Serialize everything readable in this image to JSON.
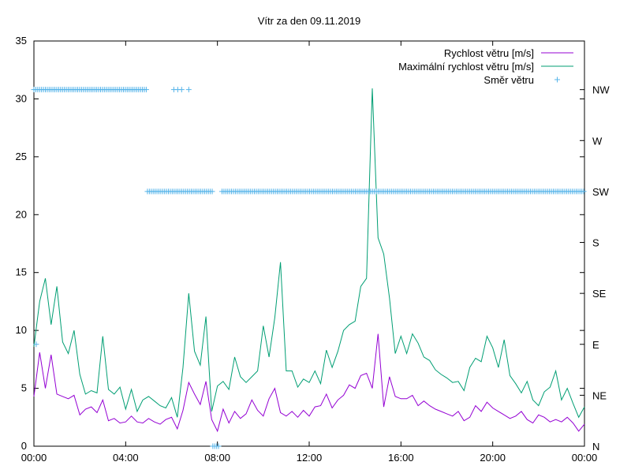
{
  "chart_data": {
    "type": "line",
    "title": "Vítr za den 09.11.2019",
    "xlabel": "",
    "ylabel": "",
    "x_range_hours": [
      0,
      24
    ],
    "x_ticks": [
      {
        "h": 0,
        "label": "00:00"
      },
      {
        "h": 4,
        "label": "04:00"
      },
      {
        "h": 8,
        "label": "08:00"
      },
      {
        "h": 12,
        "label": "12:00"
      },
      {
        "h": 16,
        "label": "16:00"
      },
      {
        "h": 20,
        "label": "20:00"
      },
      {
        "h": 24,
        "label": "00:00"
      }
    ],
    "ylim": [
      0,
      35
    ],
    "y_ticks": [
      0,
      5,
      10,
      15,
      20,
      25,
      30,
      35
    ],
    "y2_labels": [
      "N",
      "NE",
      "E",
      "SE",
      "S",
      "SW",
      "W",
      "NW"
    ],
    "grid": false,
    "legend_position": "top-right",
    "series": [
      {
        "name": "Rychlost větru [m/s]",
        "color": "#9400d3",
        "kind": "line",
        "axis": "y1",
        "points": [
          [
            0,
            4.3
          ],
          [
            0.25,
            8.1
          ],
          [
            0.5,
            5.0
          ],
          [
            0.75,
            7.9
          ],
          [
            1,
            4.5
          ],
          [
            1.25,
            4.3
          ],
          [
            1.5,
            4.1
          ],
          [
            1.75,
            4.4
          ],
          [
            2,
            2.7
          ],
          [
            2.25,
            3.2
          ],
          [
            2.5,
            3.4
          ],
          [
            2.75,
            2.9
          ],
          [
            3,
            4.0
          ],
          [
            3.25,
            2.2
          ],
          [
            3.5,
            2.4
          ],
          [
            3.75,
            2.0
          ],
          [
            4,
            2.1
          ],
          [
            4.25,
            2.6
          ],
          [
            4.5,
            2.1
          ],
          [
            4.75,
            2.0
          ],
          [
            5,
            2.4
          ],
          [
            5.25,
            2.1
          ],
          [
            5.5,
            1.9
          ],
          [
            5.75,
            2.3
          ],
          [
            6,
            2.5
          ],
          [
            6.25,
            1.5
          ],
          [
            6.5,
            3.1
          ],
          [
            6.75,
            5.5
          ],
          [
            7,
            4.5
          ],
          [
            7.25,
            3.6
          ],
          [
            7.5,
            5.6
          ],
          [
            7.75,
            2.3
          ],
          [
            8,
            1.3
          ],
          [
            8.25,
            3.2
          ],
          [
            8.5,
            2.0
          ],
          [
            8.75,
            3.0
          ],
          [
            9,
            2.4
          ],
          [
            9.25,
            2.8
          ],
          [
            9.5,
            4.0
          ],
          [
            9.75,
            3.1
          ],
          [
            10,
            2.6
          ],
          [
            10.25,
            4.1
          ],
          [
            10.5,
            5.0
          ],
          [
            10.75,
            2.9
          ],
          [
            11,
            2.6
          ],
          [
            11.25,
            3.0
          ],
          [
            11.5,
            2.5
          ],
          [
            11.75,
            3.1
          ],
          [
            12,
            2.6
          ],
          [
            12.25,
            3.4
          ],
          [
            12.5,
            3.5
          ],
          [
            12.75,
            4.5
          ],
          [
            13,
            3.3
          ],
          [
            13.25,
            4.0
          ],
          [
            13.5,
            4.4
          ],
          [
            13.75,
            5.3
          ],
          [
            14,
            5.0
          ],
          [
            14.25,
            6.1
          ],
          [
            14.5,
            6.3
          ],
          [
            14.75,
            5.0
          ],
          [
            15,
            9.7
          ],
          [
            15.25,
            3.4
          ],
          [
            15.5,
            6.0
          ],
          [
            15.75,
            4.3
          ],
          [
            16,
            4.1
          ],
          [
            16.25,
            4.1
          ],
          [
            16.5,
            4.4
          ],
          [
            16.75,
            3.5
          ],
          [
            17,
            3.9
          ],
          [
            17.25,
            3.5
          ],
          [
            17.5,
            3.2
          ],
          [
            17.75,
            3.0
          ],
          [
            18,
            2.8
          ],
          [
            18.25,
            2.6
          ],
          [
            18.5,
            3.0
          ],
          [
            18.75,
            2.2
          ],
          [
            19,
            2.5
          ],
          [
            19.25,
            3.5
          ],
          [
            19.5,
            3.0
          ],
          [
            19.75,
            3.8
          ],
          [
            20,
            3.3
          ],
          [
            20.25,
            3.0
          ],
          [
            20.5,
            2.7
          ],
          [
            20.75,
            2.4
          ],
          [
            21,
            2.6
          ],
          [
            21.25,
            3.0
          ],
          [
            21.5,
            2.3
          ],
          [
            21.75,
            2.0
          ],
          [
            22,
            2.7
          ],
          [
            22.25,
            2.5
          ],
          [
            22.5,
            2.1
          ],
          [
            22.75,
            2.3
          ],
          [
            23,
            2.1
          ],
          [
            23.25,
            2.5
          ],
          [
            23.5,
            2.0
          ],
          [
            23.75,
            1.3
          ],
          [
            24,
            1.9
          ]
        ]
      },
      {
        "name": "Maximální rychlost větru [m/s]",
        "color": "#009e73",
        "kind": "line",
        "axis": "y1",
        "points": [
          [
            0,
            8.6
          ],
          [
            0.25,
            12.5
          ],
          [
            0.5,
            14.5
          ],
          [
            0.75,
            10.5
          ],
          [
            1,
            13.8
          ],
          [
            1.25,
            9.0
          ],
          [
            1.5,
            8.0
          ],
          [
            1.75,
            10.0
          ],
          [
            2,
            6.2
          ],
          [
            2.25,
            4.5
          ],
          [
            2.5,
            4.8
          ],
          [
            2.75,
            4.6
          ],
          [
            3,
            9.5
          ],
          [
            3.25,
            4.9
          ],
          [
            3.5,
            4.5
          ],
          [
            3.75,
            5.1
          ],
          [
            4,
            3.2
          ],
          [
            4.25,
            4.9
          ],
          [
            4.5,
            3.0
          ],
          [
            4.75,
            4.0
          ],
          [
            5,
            4.3
          ],
          [
            5.25,
            3.9
          ],
          [
            5.5,
            3.5
          ],
          [
            5.75,
            3.3
          ],
          [
            6,
            4.2
          ],
          [
            6.25,
            2.5
          ],
          [
            6.5,
            6.8
          ],
          [
            6.75,
            13.2
          ],
          [
            7,
            8.2
          ],
          [
            7.25,
            7.0
          ],
          [
            7.5,
            11.2
          ],
          [
            7.75,
            3.0
          ],
          [
            8,
            5.2
          ],
          [
            8.25,
            5.6
          ],
          [
            8.5,
            4.9
          ],
          [
            8.75,
            7.7
          ],
          [
            9,
            6.0
          ],
          [
            9.25,
            5.5
          ],
          [
            9.5,
            6.0
          ],
          [
            9.75,
            6.5
          ],
          [
            10,
            10.4
          ],
          [
            10.25,
            7.7
          ],
          [
            10.5,
            11.1
          ],
          [
            10.75,
            15.9
          ],
          [
            11,
            6.5
          ],
          [
            11.25,
            6.5
          ],
          [
            11.5,
            5.1
          ],
          [
            11.75,
            5.8
          ],
          [
            12,
            5.5
          ],
          [
            12.25,
            6.5
          ],
          [
            12.5,
            5.4
          ],
          [
            12.75,
            8.3
          ],
          [
            13,
            6.8
          ],
          [
            13.25,
            8.2
          ],
          [
            13.5,
            10.0
          ],
          [
            13.75,
            10.5
          ],
          [
            14,
            10.8
          ],
          [
            14.25,
            13.8
          ],
          [
            14.5,
            14.5
          ],
          [
            14.75,
            30.9
          ],
          [
            15,
            18.0
          ],
          [
            15.25,
            16.6
          ],
          [
            15.5,
            12.8
          ],
          [
            15.75,
            8.0
          ],
          [
            16,
            9.5
          ],
          [
            16.25,
            8.0
          ],
          [
            16.5,
            9.7
          ],
          [
            16.75,
            8.9
          ],
          [
            17,
            7.7
          ],
          [
            17.25,
            7.4
          ],
          [
            17.5,
            6.6
          ],
          [
            17.75,
            6.2
          ],
          [
            18,
            5.9
          ],
          [
            18.25,
            5.5
          ],
          [
            18.5,
            5.6
          ],
          [
            18.75,
            4.8
          ],
          [
            19,
            6.8
          ],
          [
            19.25,
            7.6
          ],
          [
            19.5,
            7.3
          ],
          [
            19.75,
            9.5
          ],
          [
            20,
            8.5
          ],
          [
            20.25,
            6.8
          ],
          [
            20.5,
            9.2
          ],
          [
            20.75,
            6.1
          ],
          [
            21,
            5.4
          ],
          [
            21.25,
            4.6
          ],
          [
            21.5,
            5.6
          ],
          [
            21.75,
            4.0
          ],
          [
            22,
            3.5
          ],
          [
            22.25,
            4.7
          ],
          [
            22.5,
            5.1
          ],
          [
            22.75,
            6.5
          ],
          [
            23,
            4.0
          ],
          [
            23.25,
            5.0
          ],
          [
            23.5,
            3.7
          ],
          [
            23.75,
            2.5
          ],
          [
            24,
            3.4
          ]
        ]
      },
      {
        "name": "Směr větru",
        "color": "#56b4e9",
        "kind": "points",
        "axis": "y2",
        "segments": [
          {
            "start_h": 0.0,
            "end_h": 4.9,
            "step_h": 0.083,
            "dir_index": 7
          },
          {
            "start_h": 6.1,
            "end_h": 6.45,
            "step_h": 0.17,
            "dir_index": 7
          },
          {
            "start_h": 6.75,
            "end_h": 6.75,
            "step_h": 0.1,
            "dir_index": 7
          },
          {
            "start_h": 4.95,
            "end_h": 7.8,
            "step_h": 0.083,
            "dir_index": 5
          },
          {
            "start_h": 8.2,
            "end_h": 24.0,
            "step_h": 0.083,
            "dir_index": 5
          },
          {
            "start_h": 7.8,
            "end_h": 8.05,
            "step_h": 0.083,
            "dir_index": 0
          },
          {
            "start_h": 0.1,
            "end_h": 0.1,
            "step_h": 0.1,
            "dir_index": 2
          }
        ]
      }
    ]
  }
}
